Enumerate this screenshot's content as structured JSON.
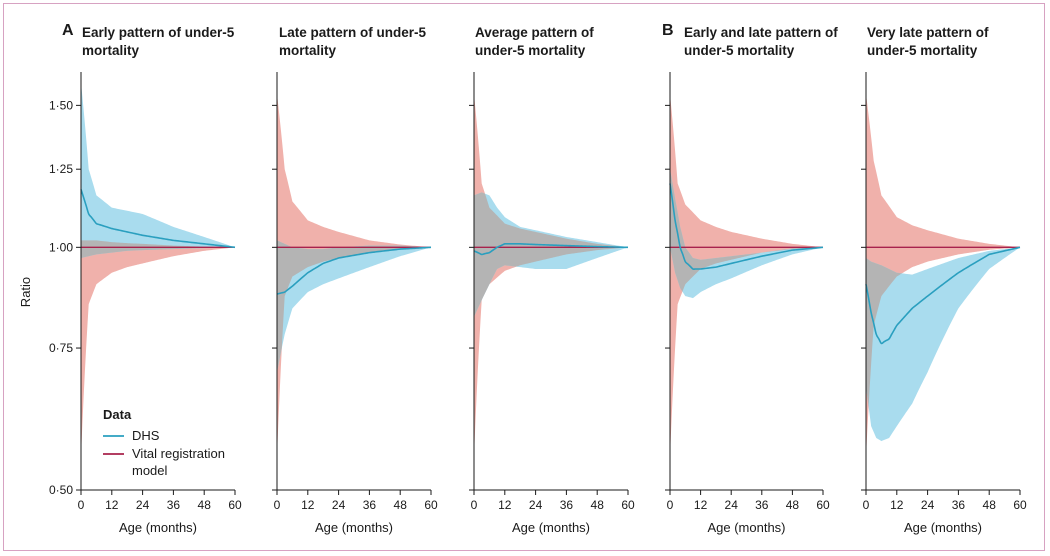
{
  "panel_letters": {
    "A": "A",
    "B": "B"
  },
  "colors": {
    "dhs_line": "#2a9fbf",
    "dhs_band": "#a9dcee",
    "vr_line": "#a8224c",
    "vr_band": "#f0b1ab",
    "overlap": "#b4b4b4",
    "frame": "#d7a2c2"
  },
  "legend": {
    "title": "Data",
    "items": [
      {
        "label": "DHS",
        "color": "#2a9fbf"
      },
      {
        "label": "Vital registration model",
        "label_lines": [
          "Vital registration",
          "model"
        ],
        "color": "#a8224c"
      }
    ]
  },
  "chart_data": [
    {
      "type": "line",
      "title": "Early pattern of under-5 mortality",
      "title_lines": [
        "Early pattern of under-5",
        "mortality"
      ],
      "xlabel": "Age (months)",
      "ylabel": "Ratio",
      "xlim": [
        0,
        60
      ],
      "ylim": [
        0.5,
        1.65
      ],
      "scale": "log",
      "xticks": [
        0,
        12,
        24,
        36,
        48,
        60
      ],
      "yticks": [
        0.5,
        0.75,
        1.0,
        1.25,
        1.5
      ],
      "ytick_labels": [
        "0·50",
        "0·75",
        "1·00",
        "1·25",
        "1·50"
      ],
      "series": [
        {
          "name": "DHS",
          "x": [
            0,
            3,
            6,
            12,
            18,
            24,
            36,
            48,
            60
          ],
          "y": [
            1.18,
            1.1,
            1.07,
            1.055,
            1.045,
            1.035,
            1.02,
            1.01,
            1.0
          ],
          "lo": [
            0.97,
            0.975,
            0.98,
            0.985,
            0.99,
            0.992,
            0.995,
            0.998,
            1.0
          ],
          "hi": [
            1.6,
            1.25,
            1.16,
            1.12,
            1.11,
            1.1,
            1.06,
            1.03,
            1.0
          ]
        },
        {
          "name": "Vital registration model",
          "x": [
            0,
            3,
            6,
            12,
            18,
            24,
            36,
            48,
            60
          ],
          "y": [
            1.0,
            1.0,
            1.0,
            1.0,
            1.0,
            1.0,
            1.0,
            1.0,
            1.0
          ],
          "lo": [
            0.55,
            0.85,
            0.9,
            0.93,
            0.945,
            0.955,
            0.975,
            0.99,
            1.0
          ],
          "hi": [
            1.02,
            1.02,
            1.02,
            1.015,
            1.012,
            1.01,
            1.005,
            1.002,
            1.0
          ]
        }
      ]
    },
    {
      "type": "line",
      "title": "Late pattern of under-5 mortality",
      "title_lines": [
        "Late pattern of under-5",
        "mortality"
      ],
      "xlabel": "Age (months)",
      "xlim": [
        0,
        60
      ],
      "ylim": [
        0.5,
        1.65
      ],
      "scale": "log",
      "xticks": [
        0,
        12,
        24,
        36,
        48,
        60
      ],
      "series": [
        {
          "name": "DHS",
          "x": [
            0,
            3,
            6,
            12,
            18,
            24,
            36,
            48,
            60
          ],
          "y": [
            0.875,
            0.88,
            0.895,
            0.93,
            0.955,
            0.97,
            0.985,
            0.995,
            1.0
          ],
          "lo": [
            0.7,
            0.78,
            0.84,
            0.88,
            0.9,
            0.915,
            0.945,
            0.975,
            1.0
          ],
          "hi": [
            1.02,
            1.01,
            1.0,
            0.995,
            0.995,
            1.0,
            1.005,
            1.005,
            1.0
          ]
        },
        {
          "name": "Vital registration model",
          "x": [
            0,
            3,
            6,
            12,
            18,
            24,
            36,
            48,
            60
          ],
          "y": [
            1.0,
            1.0,
            1.0,
            1.0,
            1.0,
            1.0,
            1.0,
            1.0,
            1.0
          ],
          "lo": [
            0.55,
            0.87,
            0.92,
            0.945,
            0.96,
            0.97,
            0.985,
            0.995,
            1.0
          ],
          "hi": [
            1.55,
            1.25,
            1.14,
            1.08,
            1.06,
            1.045,
            1.02,
            1.008,
            1.0
          ]
        }
      ]
    },
    {
      "type": "line",
      "title": "Average pattern of under-5 mortality",
      "title_lines": [
        "Average pattern of",
        "under-5 mortality"
      ],
      "xlabel": "Age (months)",
      "xlim": [
        0,
        60
      ],
      "ylim": [
        0.5,
        1.65
      ],
      "scale": "log",
      "xticks": [
        0,
        12,
        24,
        36,
        48,
        60
      ],
      "series": [
        {
          "name": "DHS",
          "x": [
            0,
            3,
            6,
            9,
            12,
            18,
            24,
            36,
            48,
            60
          ],
          "y": [
            0.99,
            0.98,
            0.985,
            1.0,
            1.01,
            1.01,
            1.008,
            1.005,
            1.002,
            1.0
          ],
          "lo": [
            0.82,
            0.86,
            0.9,
            0.94,
            0.95,
            0.945,
            0.94,
            0.94,
            0.97,
            1.0
          ],
          "hi": [
            1.16,
            1.17,
            1.16,
            1.12,
            1.09,
            1.06,
            1.05,
            1.03,
            1.015,
            1.0
          ]
        },
        {
          "name": "Vital registration model",
          "x": [
            0,
            3,
            6,
            12,
            18,
            24,
            36,
            48,
            60
          ],
          "y": [
            1.0,
            1.0,
            1.0,
            1.0,
            1.0,
            1.0,
            1.0,
            1.0,
            1.0
          ],
          "lo": [
            0.55,
            0.86,
            0.9,
            0.935,
            0.95,
            0.96,
            0.98,
            0.992,
            1.0
          ],
          "hi": [
            1.55,
            1.2,
            1.12,
            1.07,
            1.055,
            1.045,
            1.025,
            1.01,
            1.0
          ]
        }
      ]
    },
    {
      "type": "line",
      "title": "Early and late pattern of under-5 mortality",
      "title_lines": [
        "Early and late pattern of",
        "under-5 mortality"
      ],
      "xlabel": "Age (months)",
      "xlim": [
        0,
        60
      ],
      "ylim": [
        0.5,
        1.65
      ],
      "scale": "log",
      "xticks": [
        0,
        12,
        24,
        36,
        48,
        60
      ],
      "series": [
        {
          "name": "DHS",
          "x": [
            0,
            2,
            4,
            6,
            9,
            12,
            18,
            24,
            36,
            48,
            60
          ],
          "y": [
            1.2,
            1.08,
            1.0,
            0.96,
            0.94,
            0.94,
            0.945,
            0.955,
            0.975,
            0.992,
            1.0
          ],
          "lo": [
            1.0,
            0.93,
            0.89,
            0.87,
            0.865,
            0.88,
            0.9,
            0.915,
            0.95,
            0.98,
            1.0
          ],
          "hi": [
            1.25,
            1.15,
            1.06,
            1.0,
            0.97,
            0.965,
            0.97,
            0.975,
            0.985,
            0.997,
            1.0
          ]
        },
        {
          "name": "Vital registration model",
          "x": [
            0,
            3,
            6,
            12,
            18,
            24,
            36,
            48,
            60
          ],
          "y": [
            1.0,
            1.0,
            1.0,
            1.0,
            1.0,
            1.0,
            1.0,
            1.0,
            1.0
          ],
          "lo": [
            0.55,
            0.85,
            0.9,
            0.94,
            0.955,
            0.965,
            0.985,
            0.995,
            1.0
          ],
          "hi": [
            1.55,
            1.2,
            1.13,
            1.08,
            1.06,
            1.045,
            1.025,
            1.01,
            1.0
          ]
        }
      ]
    },
    {
      "type": "line",
      "title": "Very late pattern of under-5 mortality",
      "title_lines": [
        "Very late pattern of",
        "under-5 mortality"
      ],
      "xlabel": "Age (months)",
      "xlim": [
        0,
        60
      ],
      "ylim": [
        0.5,
        1.65
      ],
      "scale": "log",
      "xticks": [
        0,
        12,
        24,
        36,
        48,
        60
      ],
      "series": [
        {
          "name": "DHS",
          "x": [
            0,
            2,
            4,
            6,
            9,
            12,
            18,
            24,
            36,
            48,
            60
          ],
          "y": [
            0.9,
            0.83,
            0.78,
            0.76,
            0.77,
            0.8,
            0.84,
            0.87,
            0.93,
            0.98,
            1.0
          ],
          "lo": [
            0.67,
            0.6,
            0.58,
            0.575,
            0.58,
            0.6,
            0.64,
            0.7,
            0.84,
            0.94,
            1.0
          ],
          "hi": [
            0.97,
            0.96,
            0.955,
            0.95,
            0.94,
            0.93,
            0.925,
            0.94,
            0.97,
            0.99,
            1.0
          ]
        },
        {
          "name": "Vital registration model",
          "x": [
            0,
            3,
            6,
            12,
            18,
            24,
            36,
            48,
            60
          ],
          "y": [
            1.0,
            1.0,
            1.0,
            1.0,
            1.0,
            1.0,
            1.0,
            1.0,
            1.0
          ],
          "lo": [
            0.55,
            0.8,
            0.87,
            0.92,
            0.945,
            0.96,
            0.98,
            0.993,
            1.0
          ],
          "hi": [
            1.55,
            1.28,
            1.16,
            1.09,
            1.065,
            1.05,
            1.025,
            1.01,
            1.0
          ]
        }
      ]
    }
  ]
}
